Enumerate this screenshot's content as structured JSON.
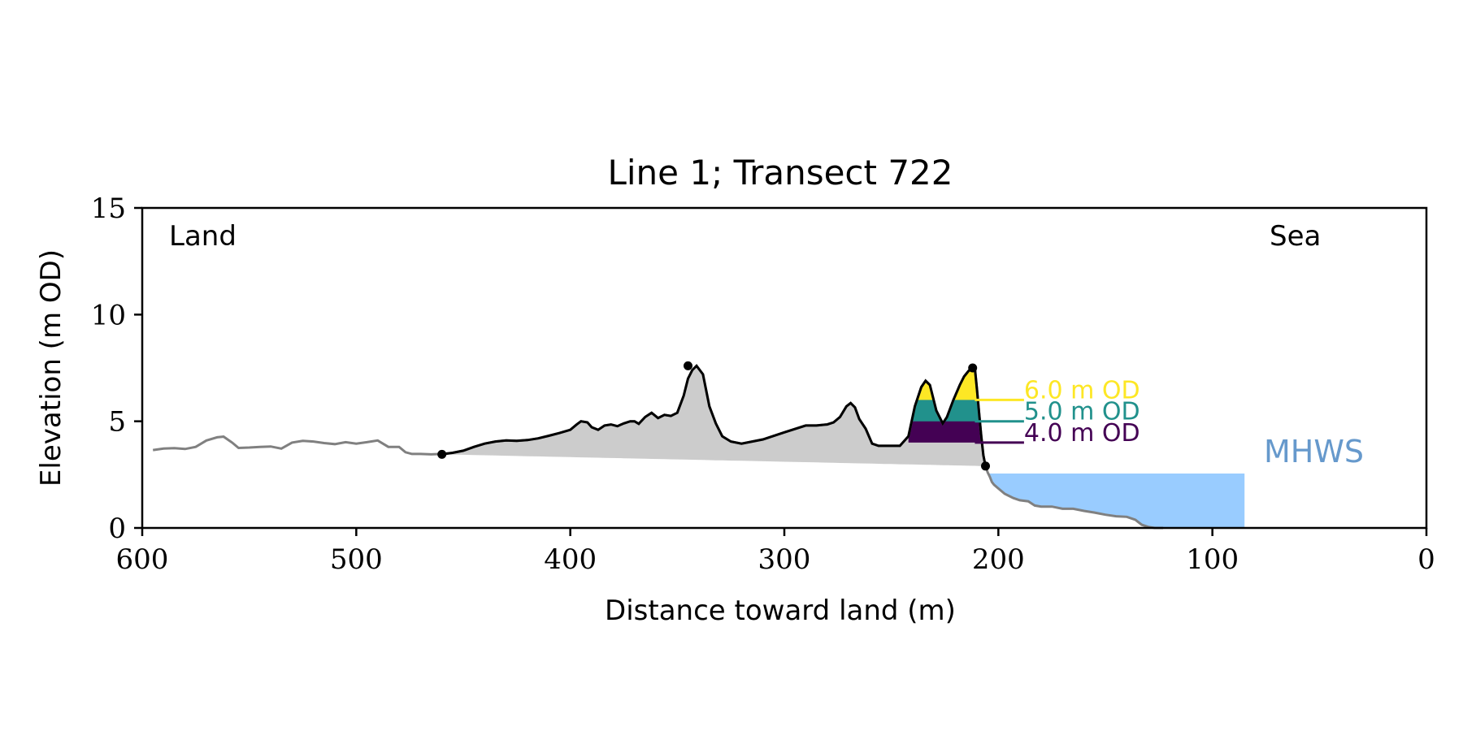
{
  "chart_data": {
    "type": "area",
    "title": "Line 1; Transect 722",
    "xlabel": "Distance toward land (m)",
    "ylabel": "Elevation (m OD)",
    "xlim": [
      600,
      0
    ],
    "ylim": [
      0,
      15
    ],
    "x_ticks": [
      "600",
      "500",
      "400",
      "300",
      "200",
      "100",
      "0"
    ],
    "y_ticks": [
      "0",
      "5",
      "10",
      "15"
    ],
    "grid": false,
    "annotations": {
      "land": "Land",
      "sea": "Sea",
      "mhws": "MHWS"
    },
    "mhws": {
      "elevation": 2.55,
      "x_start": 206,
      "x_end": 85
    },
    "contour_levels": [
      {
        "label": "6.0 m OD",
        "elevation": 6.0,
        "color": "#fde725"
      },
      {
        "label": "5.0 m OD",
        "elevation": 5.0,
        "color": "#21918c"
      },
      {
        "label": "4.0 m OD",
        "elevation": 4.0,
        "color": "#440154"
      }
    ],
    "colors": {
      "full_profile": "#808080",
      "dune_profile": "#000000",
      "dune_fill": "#cccccc",
      "sea_fill": "#99ccff",
      "mhws_label": "#6699cc"
    },
    "full_profile": {
      "x": [
        595,
        590,
        585,
        580,
        575,
        570,
        565,
        562,
        558,
        555,
        550,
        545,
        540,
        535,
        530,
        525,
        520,
        515,
        510,
        505,
        500,
        495,
        490,
        485,
        480,
        477,
        474,
        470,
        465,
        460,
        455,
        450,
        445,
        440,
        435,
        430,
        425,
        420,
        415,
        410,
        405,
        400,
        397,
        395,
        392,
        390,
        387,
        384,
        381,
        378,
        375,
        372,
        370,
        368,
        365,
        362,
        359,
        356,
        353,
        350,
        347,
        345,
        343,
        341,
        338,
        335,
        332,
        329,
        325,
        320,
        310,
        300,
        290,
        285,
        280,
        277,
        274,
        271,
        269,
        267,
        265,
        262,
        259,
        256,
        253,
        250,
        246,
        242,
        239,
        236,
        234,
        232,
        229,
        226,
        224,
        221,
        218,
        216,
        214,
        212,
        211,
        210,
        209,
        208,
        207,
        206,
        205,
        204,
        203,
        202,
        200,
        197,
        193,
        190,
        186,
        183,
        180,
        175,
        170,
        165,
        160,
        155,
        150,
        145,
        140,
        136,
        133,
        130,
        127,
        123
      ],
      "y": [
        3.65,
        3.72,
        3.74,
        3.7,
        3.8,
        4.1,
        4.25,
        4.28,
        4.0,
        3.75,
        3.77,
        3.8,
        3.82,
        3.72,
        4.0,
        4.08,
        4.05,
        3.98,
        3.93,
        4.02,
        3.95,
        4.02,
        4.1,
        3.8,
        3.8,
        3.55,
        3.47,
        3.47,
        3.45,
        3.47,
        3.52,
        3.62,
        3.8,
        3.95,
        4.05,
        4.1,
        4.08,
        4.12,
        4.2,
        4.32,
        4.45,
        4.6,
        4.85,
        5.0,
        4.95,
        4.72,
        4.6,
        4.8,
        4.85,
        4.77,
        4.9,
        5.0,
        5.0,
        4.88,
        5.2,
        5.4,
        5.15,
        5.3,
        5.25,
        5.4,
        6.2,
        7.0,
        7.4,
        7.6,
        7.2,
        5.7,
        4.9,
        4.3,
        4.05,
        3.95,
        4.15,
        4.48,
        4.8,
        4.8,
        4.85,
        4.95,
        5.2,
        5.7,
        5.85,
        5.65,
        5.1,
        4.65,
        3.95,
        3.85,
        3.85,
        3.85,
        3.85,
        4.3,
        5.7,
        6.6,
        6.9,
        6.7,
        5.5,
        4.9,
        5.2,
        6.0,
        6.7,
        7.1,
        7.35,
        7.55,
        7.5,
        6.5,
        5.4,
        4.3,
        3.4,
        2.9,
        2.6,
        2.4,
        2.15,
        2.02,
        1.85,
        1.6,
        1.4,
        1.3,
        1.25,
        1.05,
        1.0,
        1.0,
        0.9,
        0.9,
        0.8,
        0.72,
        0.62,
        0.55,
        0.52,
        0.38,
        0.15,
        0.05,
        0.0,
        0.0
      ]
    },
    "dune_profile": {
      "x": [
        460,
        455,
        450,
        445,
        440,
        435,
        430,
        425,
        420,
        415,
        410,
        405,
        400,
        397,
        395,
        392,
        390,
        387,
        384,
        381,
        378,
        375,
        372,
        370,
        368,
        365,
        362,
        359,
        356,
        353,
        350,
        347,
        345,
        343,
        341,
        338,
        335,
        332,
        329,
        325,
        320,
        310,
        300,
        290,
        285,
        280,
        277,
        274,
        271,
        269,
        267,
        265,
        262,
        259,
        256,
        253,
        250,
        246,
        242,
        239,
        236,
        234,
        232,
        229,
        226,
        224,
        221,
        218,
        216,
        214,
        212,
        211,
        210,
        209,
        208,
        207,
        206,
        205
      ],
      "y": [
        3.45,
        3.52,
        3.62,
        3.8,
        3.95,
        4.05,
        4.1,
        4.08,
        4.12,
        4.2,
        4.32,
        4.45,
        4.6,
        4.85,
        5.0,
        4.95,
        4.72,
        4.6,
        4.8,
        4.85,
        4.77,
        4.9,
        5.0,
        5.0,
        4.88,
        5.2,
        5.4,
        5.15,
        5.3,
        5.25,
        5.4,
        6.2,
        7.0,
        7.4,
        7.6,
        7.2,
        5.7,
        4.9,
        4.3,
        4.05,
        3.95,
        4.15,
        4.48,
        4.8,
        4.8,
        4.85,
        4.95,
        5.2,
        5.7,
        5.85,
        5.65,
        5.1,
        4.65,
        3.95,
        3.85,
        3.85,
        3.85,
        3.85,
        4.3,
        5.7,
        6.6,
        6.9,
        6.7,
        5.5,
        4.9,
        5.2,
        6.0,
        6.7,
        7.1,
        7.35,
        7.55,
        7.5,
        6.5,
        5.4,
        4.3,
        3.4,
        2.9,
        2.9
      ]
    },
    "dune_points": [
      {
        "x": 460,
        "y": 3.45
      },
      {
        "x": 345,
        "y": 7.6
      },
      {
        "x": 212,
        "y": 7.5
      },
      {
        "x": 206,
        "y": 2.9
      }
    ],
    "dune_base": {
      "x": [
        460,
        206
      ],
      "y": [
        3.45,
        2.9
      ]
    },
    "crest_region": {
      "x_min": 242,
      "x_max": 208
    }
  }
}
